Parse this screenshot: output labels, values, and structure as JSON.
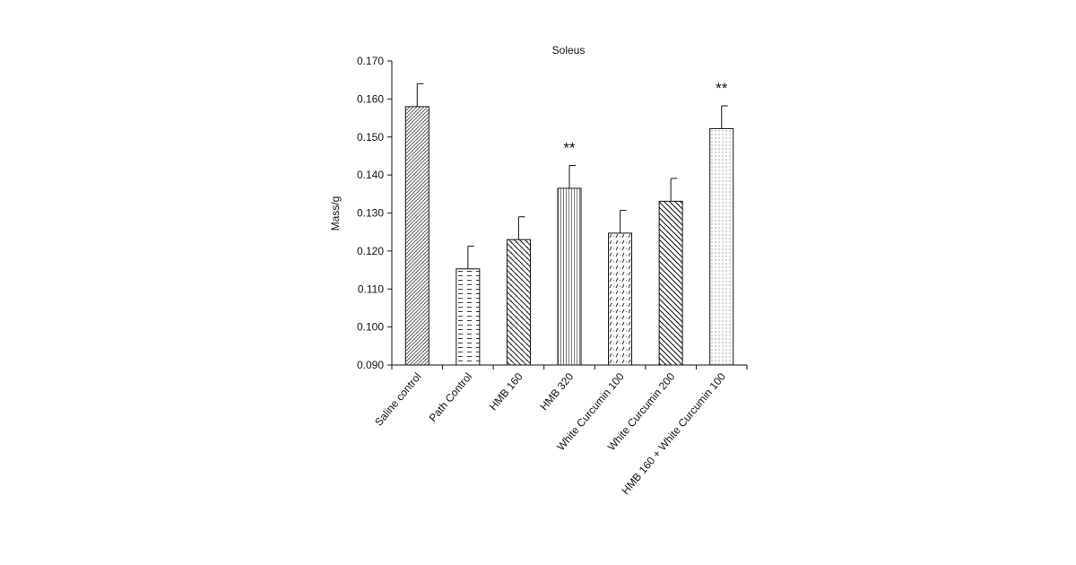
{
  "chart_data": {
    "type": "bar",
    "title": "Soleus",
    "xlabel": "",
    "ylabel": "Mass/g",
    "ylim": [
      0.09,
      0.17
    ],
    "yticks": [
      "0.090",
      "0.100",
      "0.110",
      "0.120",
      "0.130",
      "0.140",
      "0.150",
      "0.160",
      "0.170"
    ],
    "categories": [
      "Saline control",
      "Path Control",
      "HMB 160",
      "HMB 320",
      "White Curcumin 100",
      "White Curcumin 200",
      "HMB 160 + White Curcumin 100"
    ],
    "values": [
      0.158,
      0.1153,
      0.123,
      0.1365,
      0.1247,
      0.1331,
      0.1522
    ],
    "errors": [
      0.006,
      0.006,
      0.006,
      0.006,
      0.006,
      0.006,
      0.006
    ],
    "annotations": [
      "",
      "",
      "",
      "**",
      "",
      "",
      "**"
    ],
    "patterns": [
      "crosshatch-fine",
      "dashes",
      "diag-cross",
      "vertical",
      "dots-dash",
      "diag-back",
      "dots"
    ],
    "grid": false,
    "legend": "none"
  }
}
